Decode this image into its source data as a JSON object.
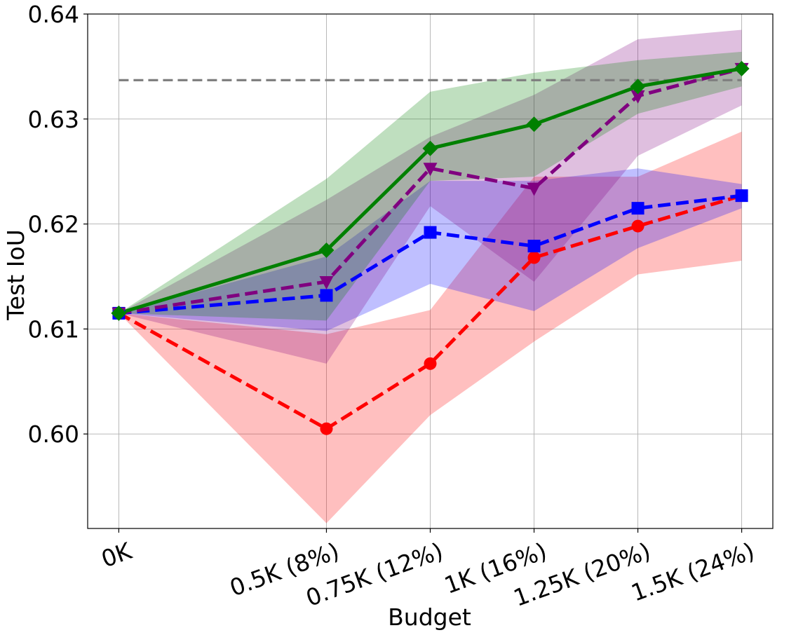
{
  "chart_data": {
    "type": "line",
    "xlabel": "Budget",
    "ylabel": "Test IoU",
    "categories": [
      "0K",
      "0.5K (8%)",
      "0.75K (12%)",
      "1K (16%)",
      "1.25K (20%)",
      "1.5K (24%)"
    ],
    "x": [
      0,
      0.5,
      0.75,
      1.0,
      1.25,
      1.5
    ],
    "xlim": [
      -0.075,
      1.575
    ],
    "ylim": [
      0.591,
      0.64
    ],
    "yticks": [
      0.6,
      0.61,
      0.62,
      0.63,
      0.64
    ],
    "ytick_labels": [
      "0.60",
      "0.61",
      "0.62",
      "0.63",
      "0.64"
    ],
    "grid": true,
    "reference_line": {
      "y": 0.6337,
      "color": "#808080",
      "dash": "dashed"
    },
    "series": [
      {
        "color": "#ff0000",
        "dash": "dashed",
        "marker": "circle",
        "values": [
          0.6115,
          0.6005,
          0.6067,
          0.6168,
          0.6198,
          0.6227
        ],
        "band_lower": [
          0.6115,
          0.5915,
          0.6018,
          0.6088,
          0.6152,
          0.6165
        ],
        "band_upper": [
          0.6115,
          0.6095,
          0.6118,
          0.6245,
          0.6245,
          0.6288
        ],
        "band_color": "#ff0000"
      },
      {
        "color": "#0000ff",
        "dash": "dashed",
        "marker": "square",
        "values": [
          0.6115,
          0.6132,
          0.6192,
          0.6179,
          0.6215,
          0.6227
        ],
        "band_lower": [
          0.6115,
          0.6098,
          0.6143,
          0.6117,
          0.6177,
          0.6215
        ],
        "band_upper": [
          0.6115,
          0.6169,
          0.6241,
          0.6241,
          0.6253,
          0.6238
        ],
        "band_color": "#0000ff"
      },
      {
        "color": "#800080",
        "dash": "dashed",
        "marker": "triangle-down",
        "values": [
          0.6115,
          0.6145,
          0.6253,
          0.6234,
          0.6322,
          0.6348
        ],
        "band_lower": [
          0.6115,
          0.6067,
          0.6217,
          0.6145,
          0.6265,
          0.6313
        ],
        "band_upper": [
          0.6115,
          0.6223,
          0.6283,
          0.6323,
          0.6376,
          0.6385
        ],
        "band_color": "#800080"
      },
      {
        "color": "#008000",
        "dash": "solid",
        "marker": "diamond",
        "values": [
          0.6115,
          0.6175,
          0.6272,
          0.6295,
          0.6331,
          0.6348
        ],
        "band_lower": [
          0.6115,
          0.6108,
          0.6241,
          0.6245,
          0.6305,
          0.6331
        ],
        "band_upper": [
          0.6115,
          0.6243,
          0.6326,
          0.6344,
          0.6356,
          0.6364
        ],
        "band_color": "#008000"
      }
    ]
  }
}
